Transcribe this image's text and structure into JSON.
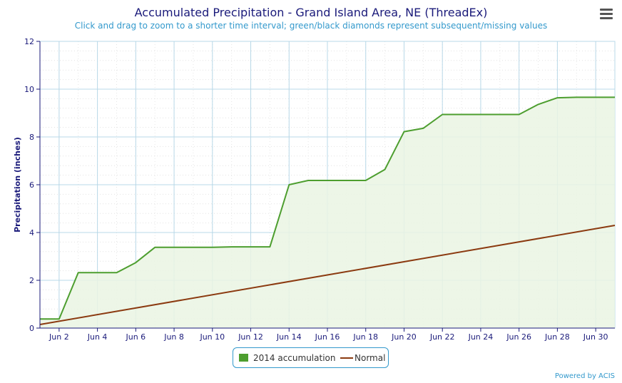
{
  "header": {
    "title": "Accumulated Precipitation - Grand Island Area, NE (ThreadEx)",
    "subtitle": "Click and drag to zoom to a shorter time interval; green/black diamonds represent subsequent/missing values"
  },
  "menu": {
    "icon": "hamburger-menu-icon"
  },
  "legend": {
    "accum_label": "2014 accumulation",
    "normal_label": "Normal"
  },
  "credits": "Powered by ACIS",
  "colors": {
    "accumulation": "#4d9e2f",
    "accumulation_fill": "#eaf4e3",
    "normal": "#8b3a10",
    "grid": "#b8d8e8",
    "axis": "#1a1a7a"
  },
  "chart_data": {
    "type": "area",
    "title": "Accumulated Precipitation - Grand Island Area, NE (ThreadEx)",
    "subtitle": "Click and drag to zoom to a shorter time interval; green/black diamonds represent subsequent/missing values",
    "xlabel": "",
    "ylabel": "Precipitation (inches)",
    "ylim": [
      0,
      12
    ],
    "yticks": [
      0,
      2,
      4,
      6,
      8,
      10,
      12
    ],
    "xlim": [
      1,
      31
    ],
    "xticks": [
      {
        "day": 2,
        "label": "Jun 2"
      },
      {
        "day": 4,
        "label": "Jun 4"
      },
      {
        "day": 6,
        "label": "Jun 6"
      },
      {
        "day": 8,
        "label": "Jun 8"
      },
      {
        "day": 10,
        "label": "Jun 10"
      },
      {
        "day": 12,
        "label": "Jun 12"
      },
      {
        "day": 14,
        "label": "Jun 14"
      },
      {
        "day": 16,
        "label": "Jun 16"
      },
      {
        "day": 18,
        "label": "Jun 18"
      },
      {
        "day": 20,
        "label": "Jun 20"
      },
      {
        "day": 22,
        "label": "Jun 22"
      },
      {
        "day": 24,
        "label": "Jun 24"
      },
      {
        "day": 26,
        "label": "Jun 26"
      },
      {
        "day": 28,
        "label": "Jun 28"
      },
      {
        "day": 30,
        "label": "Jun 30"
      }
    ],
    "grid": true,
    "legend_position": "bottom-center",
    "series": [
      {
        "name": "2014 accumulation",
        "type": "area",
        "x": [
          1,
          2,
          3,
          4,
          5,
          6,
          7,
          8,
          9,
          10,
          11,
          12,
          13,
          14,
          15,
          16,
          17,
          18,
          19,
          20,
          21,
          22,
          23,
          24,
          25,
          26,
          27,
          28,
          29,
          30,
          31
        ],
        "values": [
          0.38,
          0.38,
          2.32,
          2.32,
          2.32,
          2.74,
          3.38,
          3.38,
          3.38,
          3.38,
          3.4,
          3.4,
          3.4,
          6.0,
          6.18,
          6.18,
          6.18,
          6.18,
          6.64,
          8.22,
          8.36,
          8.94,
          8.94,
          8.94,
          8.94,
          8.94,
          9.36,
          9.64,
          9.66,
          9.66,
          9.66
        ]
      },
      {
        "name": "Normal",
        "type": "line",
        "x": [
          1,
          31
        ],
        "values": [
          0.15,
          4.3
        ]
      }
    ]
  }
}
